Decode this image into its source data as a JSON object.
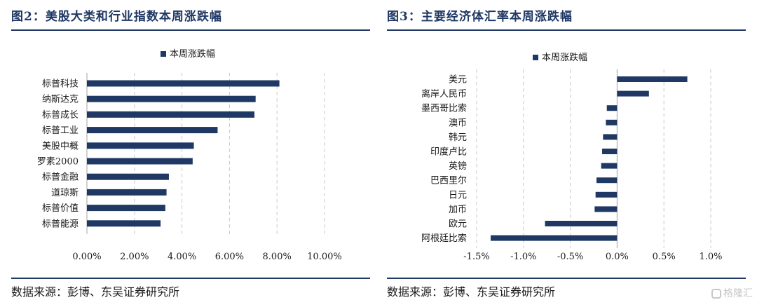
{
  "left": {
    "title": "图2：美股大类和行业指数本周涨跌幅",
    "source": "数据来源：彭博、东吴证券研究所"
  },
  "right": {
    "title": "图3：主要经济体汇率本周涨跌幅",
    "source": "数据来源：彭博、东吴证券研究所"
  },
  "watermark": "格隆汇",
  "colors": {
    "bar": "#1f3864",
    "grid": "#c9c9c9",
    "axis": "#a6a6a6"
  },
  "chart_data": [
    {
      "type": "bar",
      "orientation": "horizontal",
      "title": "",
      "legend": {
        "entries": [
          "本周涨跌幅"
        ],
        "position": "top"
      },
      "categories": [
        "标普科技",
        "纳斯达克",
        "标普成长",
        "标普工业",
        "美股中概",
        "罗素2000",
        "标普金融",
        "道琼斯",
        "标普价值",
        "标普能源"
      ],
      "series": [
        {
          "name": "本周涨跌幅",
          "values": [
            8.1,
            7.1,
            7.05,
            5.5,
            4.5,
            4.45,
            3.45,
            3.35,
            3.3,
            3.1
          ]
        }
      ],
      "xlim": [
        0,
        10
      ],
      "xticks": [
        0,
        2,
        4,
        6,
        8,
        10
      ],
      "xtick_labels": [
        "0.00%",
        "2.00%",
        "4.00%",
        "6.00%",
        "8.00%",
        "10.00%"
      ],
      "grid": "vertical dashed"
    },
    {
      "type": "bar",
      "orientation": "horizontal",
      "title": "",
      "legend": {
        "entries": [
          "本周涨跌幅"
        ],
        "position": "top"
      },
      "categories": [
        "美元",
        "离岸人民币",
        "墨西哥比索",
        "澳币",
        "韩元",
        "印度卢比",
        "英镑",
        "巴西里尔",
        "日元",
        "加币",
        "欧元",
        "阿根廷比索"
      ],
      "series": [
        {
          "name": "本周涨跌幅",
          "values": [
            0.75,
            0.34,
            -0.11,
            -0.12,
            -0.15,
            -0.16,
            -0.17,
            -0.22,
            -0.23,
            -0.24,
            -0.77,
            -1.35
          ]
        }
      ],
      "xlim": [
        -1.5,
        1.0
      ],
      "xticks": [
        -1.5,
        -1.0,
        -0.5,
        0.0,
        0.5,
        1.0
      ],
      "xtick_labels": [
        "-1.5%",
        "-1.0%",
        "-0.5%",
        "0.0%",
        "0.5%",
        "1.0%"
      ],
      "grid": "vertical dashed"
    }
  ]
}
